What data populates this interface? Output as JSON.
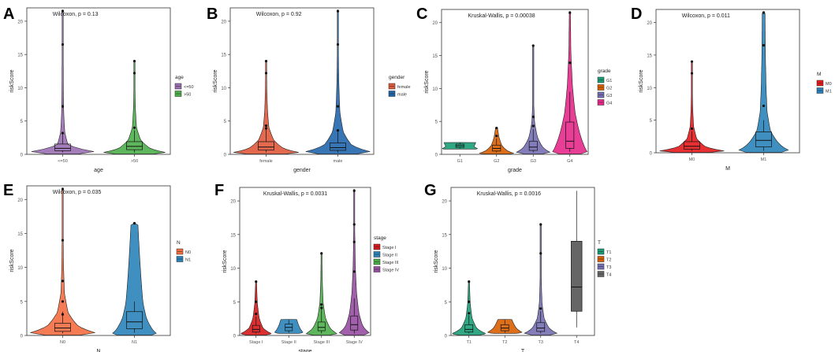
{
  "figure": {
    "y_label": "riskScore",
    "y_ticks": [
      0,
      5,
      10,
      15,
      20
    ],
    "ylim": [
      0,
      22
    ],
    "legend_position": "right"
  },
  "chart_data": [
    {
      "panel": "A",
      "type": "violin",
      "annotation": "Wilcoxon, p = 0.13",
      "xlabel": "age",
      "ylabel": "riskScore",
      "legend_title": "age",
      "categories": [
        "<=50",
        ">50"
      ],
      "colors": [
        "#9b6fb3",
        "#4daf4a"
      ],
      "series": [
        {
          "name": "<=50",
          "box": [
            0.3,
            0.55,
            0.9,
            1.55,
            3.0
          ],
          "outliers": [
            3.2,
            7.2,
            16.5,
            21.5
          ],
          "violin": [
            0.45,
            1.0,
            0.16,
            0.06,
            0.03,
            0.02,
            0.015,
            0.01
          ],
          "vmax": 21.7
        },
        {
          "name": ">50",
          "box": [
            0.3,
            0.7,
            1.2,
            1.9,
            3.6
          ],
          "outliers": [
            4.0,
            12.2,
            14.0
          ],
          "violin": [
            0.55,
            0.95,
            0.45,
            0.18,
            0.06,
            0.03,
            0.015,
            0.01
          ],
          "vmax": 14.0
        }
      ]
    },
    {
      "panel": "B",
      "type": "violin",
      "annotation": "Wilcoxon, p = 0.92",
      "xlabel": "gender",
      "ylabel": "riskScore",
      "legend_title": "gender",
      "categories": [
        "female",
        "male"
      ],
      "colors": [
        "#e05a3c",
        "#2166ac"
      ],
      "series": [
        {
          "name": "female",
          "box": [
            0.3,
            0.65,
            1.1,
            1.9,
            3.8
          ],
          "outliers": [
            3.9,
            4.3,
            12.2,
            14.0
          ],
          "violin": [
            0.55,
            1.0,
            0.5,
            0.22,
            0.08,
            0.04,
            0.02,
            0.01
          ],
          "vmax": 14.0
        },
        {
          "name": "male",
          "box": [
            0.3,
            0.6,
            1.0,
            1.7,
            3.4
          ],
          "outliers": [
            3.6,
            7.2,
            16.5,
            21.5
          ],
          "violin": [
            0.55,
            1.0,
            0.4,
            0.16,
            0.06,
            0.03,
            0.015,
            0.01
          ],
          "vmax": 21.7
        }
      ]
    },
    {
      "panel": "C",
      "type": "violin",
      "annotation": "Kruskal-Wallis, p = 0.00038",
      "xlabel": "grade",
      "ylabel": "riskScore",
      "legend_title": "grade",
      "categories": [
        "G1",
        "G2",
        "G3",
        "G4"
      ],
      "colors": [
        "#1b9e77",
        "#d95f02",
        "#7570b3",
        "#e7298a"
      ],
      "series": [
        {
          "name": "G1",
          "box": [
            0.9,
            1.05,
            1.3,
            1.55,
            1.75
          ],
          "outliers": [],
          "violin": [
            0.9,
            1.0,
            0.8,
            0.9
          ],
          "vmax": 1.8,
          "vmin": 0.8
        },
        {
          "name": "G2",
          "box": [
            0.3,
            0.5,
            0.9,
            1.4,
            2.4
          ],
          "outliers": [
            2.8,
            4.0
          ],
          "violin": [
            0.6,
            1.0,
            0.6,
            0.3,
            0.15,
            0.05
          ],
          "vmax": 4.1
        },
        {
          "name": "G3",
          "box": [
            0.3,
            0.6,
            1.1,
            2.0,
            3.8
          ],
          "outliers": [
            4.3,
            5.7,
            16.5
          ],
          "violin": [
            0.5,
            1.0,
            0.55,
            0.25,
            0.08,
            0.03,
            0.015,
            0.01
          ],
          "vmax": 16.5
        },
        {
          "name": "G4",
          "box": [
            0.4,
            0.9,
            2.0,
            4.9,
            9.5
          ],
          "outliers": [
            13.9,
            21.5
          ],
          "violin": [
            0.6,
            1.0,
            0.8,
            0.55,
            0.3,
            0.15,
            0.06,
            0.03
          ],
          "vmax": 21.7
        }
      ]
    },
    {
      "panel": "D",
      "type": "violin",
      "annotation": "Wilcoxon, p = 0.011",
      "xlabel": "M",
      "ylabel": "riskScore",
      "legend_title": "M",
      "categories": [
        "M0",
        "M1"
      ],
      "colors": [
        "#e41a1c",
        "#2b83ba"
      ],
      "series": [
        {
          "name": "M0",
          "box": [
            0.3,
            0.55,
            1.0,
            1.7,
            3.3
          ],
          "outliers": [
            3.7,
            12.2,
            14.0
          ],
          "violin": [
            0.5,
            1.0,
            0.4,
            0.14,
            0.05,
            0.025,
            0.012,
            0.008
          ],
          "vmax": 14.0
        },
        {
          "name": "M1",
          "box": [
            0.3,
            0.9,
            1.9,
            3.2,
            5.0
          ],
          "outliers": [
            7.2,
            16.5,
            21.5
          ],
          "violin": [
            0.5,
            0.75,
            0.45,
            0.2,
            0.1,
            0.07,
            0.05,
            0.04
          ],
          "vmax": 21.7
        }
      ]
    },
    {
      "panel": "E",
      "type": "violin",
      "annotation": "Wilcoxon, p = 0.035",
      "xlabel": "N",
      "ylabel": "riskScore",
      "legend_title": "N",
      "categories": [
        "N0",
        "N1"
      ],
      "colors": [
        "#f46d43",
        "#2b83ba"
      ],
      "series": [
        {
          "name": "N0",
          "box": [
            0.3,
            0.6,
            1.1,
            1.8,
            3.5
          ],
          "outliers": [
            3.1,
            5.0,
            8.0,
            14.0,
            21.5
          ],
          "violin": [
            0.5,
            1.0,
            0.45,
            0.16,
            0.05,
            0.025,
            0.012,
            0.008
          ],
          "vmax": 21.7
        },
        {
          "name": "N1",
          "box": [
            0.4,
            1.0,
            2.0,
            3.5,
            5.0
          ],
          "outliers": [
            16.5
          ],
          "violin": [
            0.5,
            0.65,
            0.5,
            0.35,
            0.25,
            0.2,
            0.15,
            0.1
          ],
          "vmax": 16.5
        }
      ]
    },
    {
      "panel": "F",
      "type": "violin",
      "annotation": "Kruskal-Wallis, p = 0.0031",
      "xlabel": "stage",
      "ylabel": "riskScore",
      "legend_title": "stage",
      "categories": [
        "Stage I",
        "Stage II",
        "Stage III",
        "Stage IV"
      ],
      "colors": [
        "#d7191c",
        "#2b83ba",
        "#4daf4a",
        "#984ea3"
      ],
      "series": [
        {
          "name": "Stage I",
          "box": [
            0.3,
            0.5,
            0.9,
            1.5,
            2.8
          ],
          "outliers": [
            3.2,
            5.0,
            8.0
          ],
          "violin": [
            0.55,
            1.0,
            0.45,
            0.2,
            0.08,
            0.03
          ],
          "vmax": 8.0
        },
        {
          "name": "Stage II",
          "box": [
            0.4,
            0.7,
            1.2,
            1.7,
            2.3
          ],
          "outliers": [],
          "violin": [
            0.6,
            0.9,
            0.7,
            0.5
          ],
          "vmax": 2.4,
          "vmin": 0.3
        },
        {
          "name": "Stage III",
          "box": [
            0.3,
            0.7,
            1.2,
            2.0,
            3.9
          ],
          "outliers": [
            4.1,
            4.6,
            12.2
          ],
          "violin": [
            0.5,
            1.0,
            0.55,
            0.25,
            0.1,
            0.05,
            0.025
          ],
          "vmax": 12.2
        },
        {
          "name": "Stage IV",
          "box": [
            0.3,
            0.8,
            1.6,
            2.9,
            5.5
          ],
          "outliers": [
            9.5,
            13.9,
            16.5,
            21.5
          ],
          "violin": [
            0.6,
            1.0,
            0.55,
            0.3,
            0.15,
            0.07,
            0.035,
            0.02
          ],
          "vmax": 21.7
        }
      ]
    },
    {
      "panel": "G",
      "type": "violin",
      "annotation": "Kruskal-Wallis, p = 0.0016",
      "xlabel": "T",
      "ylabel": "riskScore",
      "legend_title": "T",
      "categories": [
        "T1",
        "T2",
        "T3",
        "T4"
      ],
      "colors": [
        "#1b9e77",
        "#d95f02",
        "#7570b3",
        "#666666"
      ],
      "series": [
        {
          "name": "T1",
          "box": [
            0.3,
            0.5,
            0.9,
            1.6,
            3.0
          ],
          "outliers": [
            3.3,
            5.0,
            8.0
          ],
          "violin": [
            0.55,
            1.0,
            0.45,
            0.18,
            0.07,
            0.03
          ],
          "vmax": 8.0
        },
        {
          "name": "T2",
          "box": [
            0.4,
            0.7,
            1.1,
            1.6,
            2.3
          ],
          "outliers": [],
          "violin": [
            0.6,
            1.0,
            0.65,
            0.4
          ],
          "vmax": 2.4,
          "vmin": 0.3
        },
        {
          "name": "T3",
          "box": [
            0.3,
            0.6,
            1.1,
            1.9,
            3.6
          ],
          "outliers": [
            4.0,
            12.2,
            16.5
          ],
          "violin": [
            0.5,
            1.0,
            0.5,
            0.2,
            0.08,
            0.04,
            0.02,
            0.01
          ],
          "vmax": 16.5
        },
        {
          "name": "T4",
          "box": [
            1.2,
            3.6,
            7.2,
            14.0,
            21.5
          ],
          "outliers": [],
          "violin": [],
          "vmax": 21.5
        }
      ]
    }
  ]
}
